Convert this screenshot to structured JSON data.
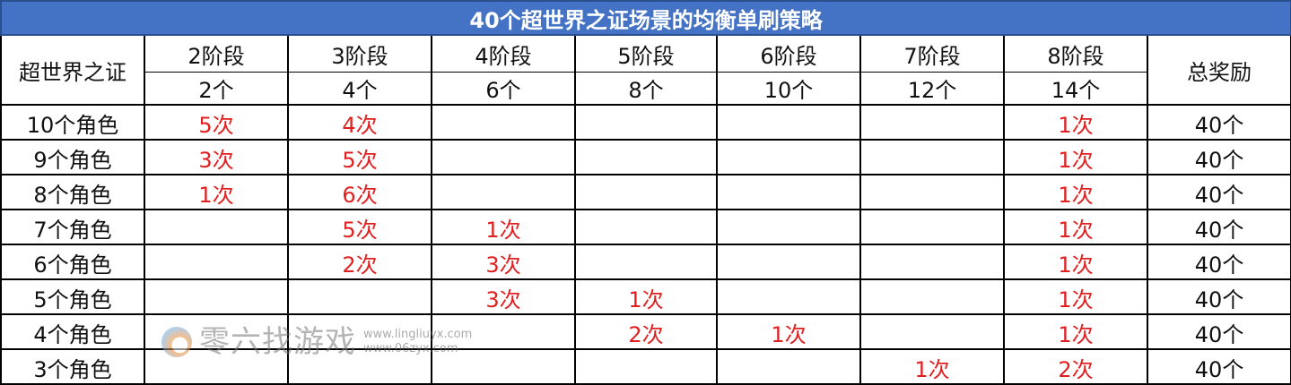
{
  "title": "40个超世界之证场景的均衡单刷策略",
  "corner_label": "超世界之证",
  "total_label": "总奖励",
  "stages": [
    {
      "name": "2阶段",
      "count": "2个"
    },
    {
      "name": "3阶段",
      "count": "4个"
    },
    {
      "name": "4阶段",
      "count": "6个"
    },
    {
      "name": "5阶段",
      "count": "8个"
    },
    {
      "name": "6阶段",
      "count": "10个"
    },
    {
      "name": "7阶段",
      "count": "12个"
    },
    {
      "name": "8阶段",
      "count": "14个"
    }
  ],
  "rows": [
    {
      "label": "10个角色",
      "cells": [
        "5次",
        "4次",
        "",
        "",
        "",
        "",
        "1次"
      ],
      "total": "40个"
    },
    {
      "label": "9个角色",
      "cells": [
        "3次",
        "5次",
        "",
        "",
        "",
        "",
        "1次"
      ],
      "total": "40个"
    },
    {
      "label": "8个角色",
      "cells": [
        "1次",
        "6次",
        "",
        "",
        "",
        "",
        "1次"
      ],
      "total": "40个"
    },
    {
      "label": "7个角色",
      "cells": [
        "",
        "5次",
        "1次",
        "",
        "",
        "",
        "1次"
      ],
      "total": "40个"
    },
    {
      "label": "6个角色",
      "cells": [
        "",
        "2次",
        "3次",
        "",
        "",
        "",
        "1次"
      ],
      "total": "40个"
    },
    {
      "label": "5个角色",
      "cells": [
        "",
        "",
        "3次",
        "1次",
        "",
        "",
        "1次"
      ],
      "total": "40个"
    },
    {
      "label": "4个角色",
      "cells": [
        "",
        "",
        "",
        "2次",
        "1次",
        "",
        "1次"
      ],
      "total": "40个"
    },
    {
      "label": "3个角色",
      "cells": [
        "",
        "",
        "",
        "",
        "",
        "1次",
        "2次"
      ],
      "total": "40个"
    }
  ],
  "colors": {
    "header_bg": "#4472c4",
    "count_text": "#e02020"
  },
  "watermark": {
    "name": "零六找游戏",
    "urls": "www.lingliuyx.com www.06zyx.com"
  }
}
